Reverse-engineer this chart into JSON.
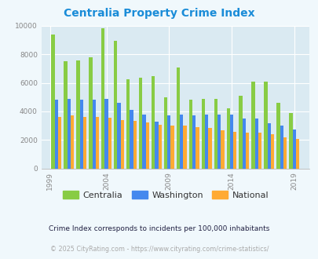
{
  "title": "Centralia Property Crime Index",
  "title_color": "#1a8cd8",
  "background_color": "#f0f8fc",
  "plot_bg_color": "#daeaf2",
  "years": [
    2000,
    2001,
    2002,
    2003,
    2004,
    2005,
    2006,
    2007,
    2008,
    2009,
    2010,
    2011,
    2012,
    2013,
    2014,
    2015,
    2016,
    2017,
    2018,
    2019
  ],
  "xtick_labels": [
    "1999",
    "2004",
    "2009",
    "2014",
    "2019"
  ],
  "xtick_positions": [
    1999.5,
    2004,
    2009,
    2014,
    2019
  ],
  "centralia": [
    9400,
    7500,
    7550,
    7800,
    9850,
    8950,
    6280,
    6380,
    6480,
    5000,
    7100,
    4800,
    4900,
    4900,
    4200,
    5100,
    6080,
    6080,
    4600,
    3900
  ],
  "washington": [
    4800,
    4900,
    4800,
    4800,
    4900,
    4600,
    4100,
    3800,
    3300,
    3700,
    3800,
    3700,
    3800,
    3800,
    3800,
    3500,
    3500,
    3150,
    3000,
    2750
  ],
  "national": [
    3600,
    3700,
    3600,
    3600,
    3550,
    3400,
    3350,
    3200,
    3050,
    3000,
    2980,
    2880,
    2850,
    2650,
    2550,
    2480,
    2480,
    2400,
    2200,
    2060
  ],
  "bar_colors": {
    "centralia": "#88cc44",
    "washington": "#4488ee",
    "national": "#ffaa33"
  },
  "ylim": [
    0,
    10000
  ],
  "yticks": [
    0,
    2000,
    4000,
    6000,
    8000,
    10000
  ],
  "tick_color": "#888888",
  "legend_labels": [
    "Centralia",
    "Washington",
    "National"
  ],
  "footnote1": "Crime Index corresponds to incidents per 100,000 inhabitants",
  "footnote2": "© 2025 CityRating.com - https://www.cityrating.com/crime-statistics/",
  "footnote_color1": "#222244",
  "footnote_color2": "#aaaaaa"
}
